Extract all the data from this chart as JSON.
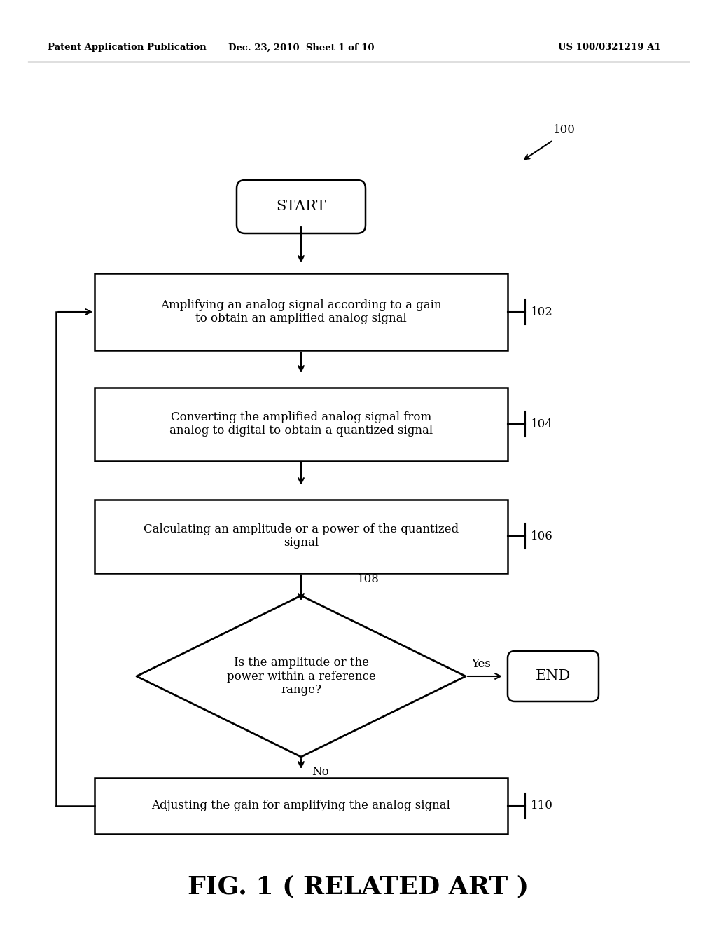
{
  "bg_color": "#ffffff",
  "header_left": "Patent Application Publication",
  "header_center": "Dec. 23, 2010  Sheet 1 of 10",
  "header_right": "US 100/0321219 A1",
  "fig_label": "FIG. 1 ( RELATED ART )",
  "ref_100": "100",
  "start_text": "START",
  "box102_text": "Amplifying an analog signal according to a gain\nto obtain an amplified analog signal",
  "box102_ref": "102",
  "box104_text": "Converting the amplified analog signal from\nanalog to digital to obtain a quantized signal",
  "box104_ref": "104",
  "box106_text": "Calculating an amplitude or a power of the quantized\nsignal",
  "box106_ref": "106",
  "diamond108_text": "Is the amplitude or the\npower within a reference\nrange?",
  "diamond108_ref": "108",
  "yes_label": "Yes",
  "no_label": "No",
  "end_text": "END",
  "box110_text": "Adjusting the gain for amplifying the analog signal",
  "box110_ref": "110",
  "line_color": "#000000",
  "text_color": "#000000"
}
